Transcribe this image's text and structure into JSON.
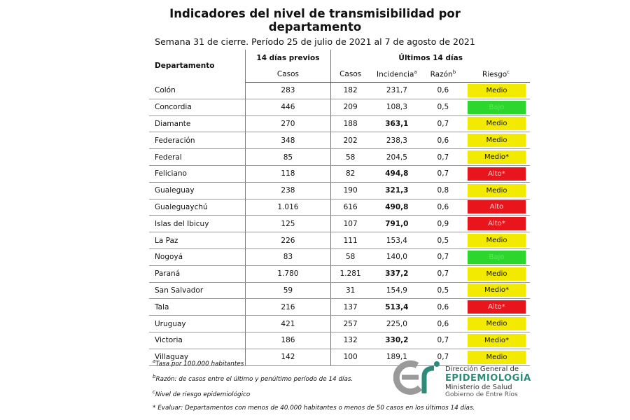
{
  "header": {
    "title_line1": "Indicadores del nivel de transmisibilidad por",
    "title_line2": "departamento",
    "subtitle": "Semana 31 de cierre. Período 25 de julio de 2021 al 7 de agosto de 2021"
  },
  "table": {
    "col_departamento": "Departamento",
    "group_previos": "14 días previos",
    "group_ultimos": "Últimos 14 días",
    "col_casos_previos": "Casos",
    "col_casos": "Casos",
    "col_incidencia": "Incidencia",
    "col_incidencia_sup": "a",
    "col_razon": "Razón",
    "col_razon_sup": "b",
    "col_riesgo": "Riesgo",
    "col_riesgo_sup": "c",
    "risk_colors": {
      "Medio": "#f2ea00",
      "Alto": "#e8161c",
      "Bajo": "#2cd62c"
    },
    "rows": [
      {
        "dep": "Colón",
        "prev": "283",
        "casos": "182",
        "inc": "231,7",
        "inc_bold": false,
        "razon": "0,6",
        "riesgo": "Medio",
        "level": "medio"
      },
      {
        "dep": "Concordia",
        "prev": "446",
        "casos": "209",
        "inc": "108,3",
        "inc_bold": false,
        "razon": "0,5",
        "riesgo": "Bajo",
        "level": "bajo"
      },
      {
        "dep": "Diamante",
        "prev": "270",
        "casos": "188",
        "inc": "363,1",
        "inc_bold": true,
        "razon": "0,7",
        "riesgo": "Medio",
        "level": "medio"
      },
      {
        "dep": "Federación",
        "prev": "348",
        "casos": "202",
        "inc": "238,3",
        "inc_bold": false,
        "razon": "0,6",
        "riesgo": "Medio",
        "level": "medio"
      },
      {
        "dep": "Federal",
        "prev": "85",
        "casos": "58",
        "inc": "204,5",
        "inc_bold": false,
        "razon": "0,7",
        "riesgo": "Medio*",
        "level": "medio"
      },
      {
        "dep": "Feliciano",
        "prev": "118",
        "casos": "82",
        "inc": "494,8",
        "inc_bold": true,
        "razon": "0,7",
        "riesgo": "Alto*",
        "level": "alto"
      },
      {
        "dep": "Gualeguay",
        "prev": "238",
        "casos": "190",
        "inc": "321,3",
        "inc_bold": true,
        "razon": "0,8",
        "riesgo": "Medio",
        "level": "medio"
      },
      {
        "dep": "Gualeguaychú",
        "prev": "1.016",
        "casos": "616",
        "inc": "490,8",
        "inc_bold": true,
        "razon": "0,6",
        "riesgo": "Alto",
        "level": "alto"
      },
      {
        "dep": "Islas del Ibicuy",
        "prev": "125",
        "casos": "107",
        "inc": "791,0",
        "inc_bold": true,
        "razon": "0,9",
        "riesgo": "Alto*",
        "level": "alto"
      },
      {
        "dep": "La Paz",
        "prev": "226",
        "casos": "111",
        "inc": "153,4",
        "inc_bold": false,
        "razon": "0,5",
        "riesgo": "Medio",
        "level": "medio"
      },
      {
        "dep": "Nogoyá",
        "prev": "83",
        "casos": "58",
        "inc": "140,0",
        "inc_bold": false,
        "razon": "0,7",
        "riesgo": "Bajo",
        "level": "bajo"
      },
      {
        "dep": "Paraná",
        "prev": "1.780",
        "casos": "1.281",
        "inc": "337,2",
        "inc_bold": true,
        "razon": "0,7",
        "riesgo": "Medio",
        "level": "medio"
      },
      {
        "dep": "San Salvador",
        "prev": "59",
        "casos": "31",
        "inc": "154,9",
        "inc_bold": false,
        "razon": "0,5",
        "riesgo": "Medio*",
        "level": "medio"
      },
      {
        "dep": "Tala",
        "prev": "216",
        "casos": "137",
        "inc": "513,4",
        "inc_bold": true,
        "razon": "0,6",
        "riesgo": "Alto*",
        "level": "alto"
      },
      {
        "dep": "Uruguay",
        "prev": "421",
        "casos": "257",
        "inc": "225,0",
        "inc_bold": false,
        "razon": "0,6",
        "riesgo": "Medio",
        "level": "medio"
      },
      {
        "dep": "Victoria",
        "prev": "186",
        "casos": "132",
        "inc": "330,2",
        "inc_bold": true,
        "razon": "0,7",
        "riesgo": "Medio*",
        "level": "medio"
      },
      {
        "dep": "Villaguay",
        "prev": "142",
        "casos": "100",
        "inc": "189,1",
        "inc_bold": false,
        "razon": "0,7",
        "riesgo": "Medio",
        "level": "medio"
      }
    ]
  },
  "notes": {
    "a": "Tasa por 100.000 habitantes",
    "b": "Razón: de casos entre el último y penúltimo período de 14 días.",
    "c": "Nivel de riesgo epidemiológico",
    "star": "* Evaluar: Departamentos con menos de 40.000 habitantes o menos de 50 casos en los últimos 14 días.",
    "mark_a": "a",
    "mark_b": "b",
    "mark_c": "c"
  },
  "logo": {
    "line1": "Dirección General de",
    "line2": "EPIDEMIOLOGÍA",
    "line3": "Ministerio de Salud",
    "line4": "Gobierno de Entre Ríos",
    "brand_color": "#2e8b7a"
  }
}
